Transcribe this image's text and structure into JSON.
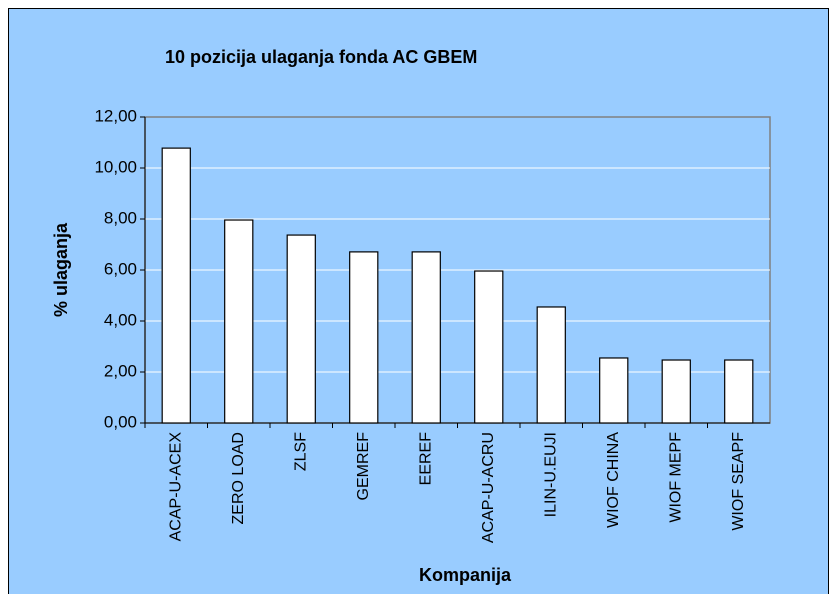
{
  "chart_data": {
    "type": "bar",
    "title": "10 pozicija ulaganja fonda AC GBEM",
    "y_label": "% ulaganja",
    "x_label": "Kompanija",
    "categories": [
      "ACAP-U-ACEX",
      "ZERO LOAD",
      "ZLSF",
      "GEMREF",
      "EEREF",
      "ACAP-U-ACRU",
      "ILIN-U.EUJI",
      "WIOF CHINA",
      "WIOF MEPF",
      "WIOF SEAPF"
    ],
    "values": [
      10.78,
      7.96,
      7.37,
      6.71,
      6.71,
      5.96,
      4.55,
      2.55,
      2.47,
      2.47
    ],
    "color": "#ffffff",
    "ylim": [
      0,
      12
    ],
    "yticks": [
      {
        "value": 0,
        "label": "0,00"
      },
      {
        "value": 2,
        "label": "2,00"
      },
      {
        "value": 4,
        "label": "4,00"
      },
      {
        "value": 6,
        "label": "6,00"
      },
      {
        "value": 8,
        "label": "8,00"
      },
      {
        "value": 10,
        "label": "10,00"
      },
      {
        "value": 12,
        "label": "12,00"
      }
    ],
    "grid": true
  }
}
